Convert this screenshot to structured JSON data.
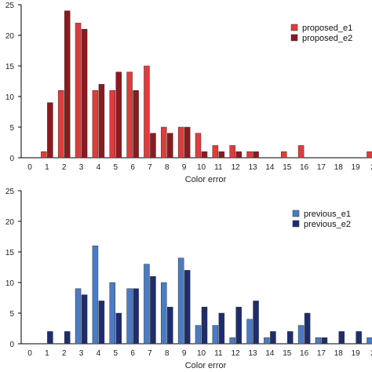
{
  "chart_data": [
    {
      "type": "bar",
      "xlabel": "Color error",
      "ylabel": "",
      "ylim": [
        0,
        25
      ],
      "yticks": [
        0,
        5,
        10,
        15,
        20,
        25
      ],
      "categories": [
        "0",
        "1",
        "2",
        "3",
        "4",
        "5",
        "6",
        "7",
        "8",
        "9",
        "10",
        "11",
        "12",
        "13",
        "14",
        "15",
        "16",
        "17",
        "18",
        "19",
        "2"
      ],
      "legend_position": "top-right",
      "grid": false,
      "series": [
        {
          "name": "proposed_e1",
          "color": "#e23b3b",
          "values": [
            0,
            1,
            11,
            22,
            11,
            11,
            14,
            15,
            5,
            5,
            4,
            2,
            2,
            1,
            0,
            1,
            2,
            0,
            0,
            0,
            1
          ]
        },
        {
          "name": "proposed_e2",
          "color": "#8b1a1f",
          "values": [
            0,
            9,
            24,
            21,
            12,
            14,
            11,
            4,
            4,
            5,
            1,
            1,
            1,
            1,
            0,
            0,
            0,
            0,
            0,
            0,
            0
          ]
        }
      ]
    },
    {
      "type": "bar",
      "xlabel": "Color error",
      "ylabel": "",
      "ylim": [
        0,
        25
      ],
      "yticks": [
        0,
        5,
        10,
        15,
        20,
        25
      ],
      "categories": [
        "0",
        "1",
        "2",
        "3",
        "4",
        "5",
        "6",
        "7",
        "8",
        "9",
        "10",
        "11",
        "12",
        "13",
        "14",
        "15",
        "16",
        "17",
        "18",
        "19",
        "2"
      ],
      "legend_position": "top-right",
      "grid": false,
      "series": [
        {
          "name": "previous_e1",
          "color": "#4a7cc4",
          "values": [
            0,
            0,
            0,
            9,
            16,
            10,
            9,
            13,
            10,
            14,
            3,
            3,
            1,
            4,
            1,
            0,
            3,
            1,
            0,
            0,
            1
          ]
        },
        {
          "name": "previous_e2",
          "color": "#1f2d6e",
          "values": [
            0,
            2,
            2,
            8,
            7,
            5,
            9,
            11,
            6,
            12,
            6,
            5,
            6,
            7,
            2,
            2,
            5,
            1,
            2,
            2,
            0
          ]
        }
      ]
    }
  ]
}
